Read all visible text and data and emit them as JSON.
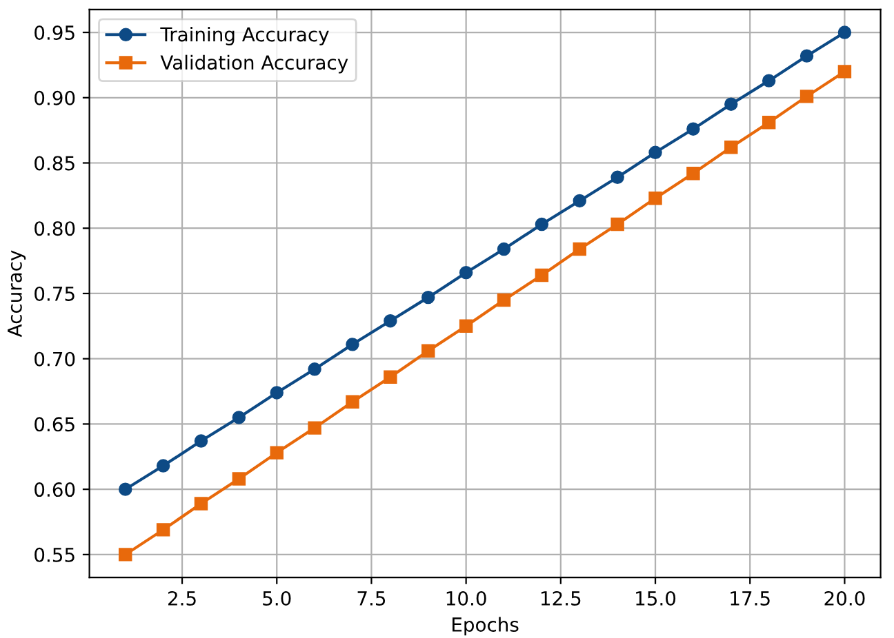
{
  "chart_data": {
    "type": "line",
    "xlabel": "Epochs",
    "ylabel": "Accuracy",
    "x": [
      1,
      2,
      3,
      4,
      5,
      6,
      7,
      8,
      9,
      10,
      11,
      12,
      13,
      14,
      15,
      16,
      17,
      18,
      19,
      20
    ],
    "series": [
      {
        "name": "Training Accuracy",
        "color": "#0d4a85",
        "marker": "circle",
        "values": [
          0.6,
          0.618,
          0.637,
          0.655,
          0.674,
          0.692,
          0.711,
          0.729,
          0.747,
          0.766,
          0.784,
          0.803,
          0.821,
          0.839,
          0.858,
          0.876,
          0.895,
          0.913,
          0.932,
          0.95
        ]
      },
      {
        "name": "Validation Accuracy",
        "color": "#e8690b",
        "marker": "square",
        "values": [
          0.55,
          0.569,
          0.589,
          0.608,
          0.628,
          0.647,
          0.667,
          0.686,
          0.706,
          0.725,
          0.745,
          0.764,
          0.784,
          0.803,
          0.823,
          0.842,
          0.862,
          0.881,
          0.901,
          0.92
        ]
      }
    ],
    "xlim": [
      0.05,
      20.95
    ],
    "ylim": [
      0.5325,
      0.9675
    ],
    "xticks": [
      2.5,
      {
        "value": 5,
        "label": "5.0"
      },
      7.5,
      {
        "value": 10,
        "label": "10.0"
      },
      12.5,
      {
        "value": 15,
        "label": "15.0"
      },
      17.5,
      {
        "value": 20,
        "label": "20.0"
      }
    ],
    "yticks": [
      {
        "value": 0.55,
        "label": "0.55"
      },
      {
        "value": 0.6,
        "label": "0.60"
      },
      {
        "value": 0.65,
        "label": "0.65"
      },
      {
        "value": 0.7,
        "label": "0.70"
      },
      {
        "value": 0.75,
        "label": "0.75"
      },
      {
        "value": 0.8,
        "label": "0.80"
      },
      {
        "value": 0.85,
        "label": "0.85"
      },
      {
        "value": 0.9,
        "label": "0.90"
      },
      {
        "value": 0.95,
        "label": "0.95"
      }
    ],
    "grid": true,
    "legend": "top left",
    "line_style": "solid"
  }
}
